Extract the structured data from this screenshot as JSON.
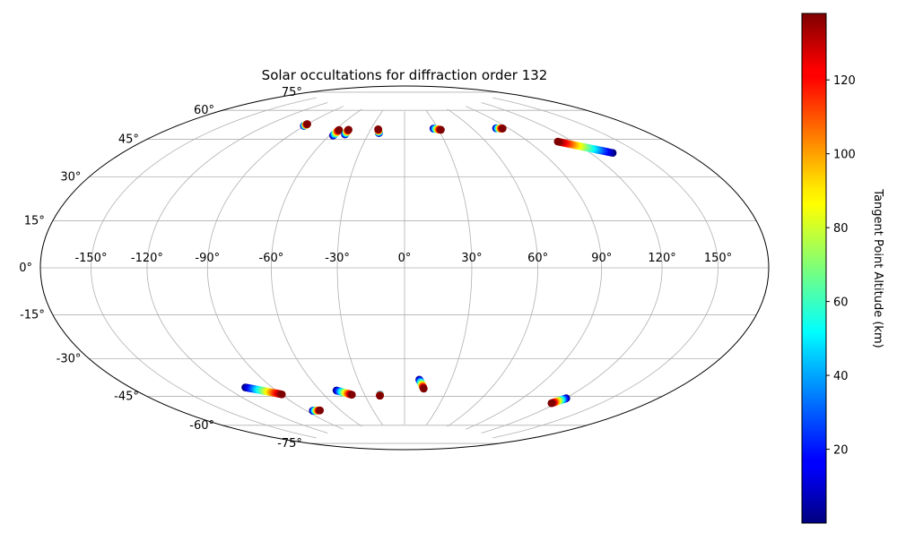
{
  "chart_data": {
    "type": "scatter",
    "projection": "hammer",
    "title": "Solar occultations for diffraction order 132",
    "xlabel": "",
    "ylabel": "",
    "grid": true,
    "x_ticks": [
      -150,
      -120,
      -90,
      -60,
      -30,
      0,
      30,
      60,
      90,
      120,
      150
    ],
    "y_ticks": [
      -75,
      -60,
      -45,
      -30,
      -15,
      0,
      15,
      30,
      45,
      60,
      75
    ],
    "tick_suffix": "°",
    "colorbar": {
      "label": "Tangent Point Altitude (km)",
      "min": 0,
      "max": 138,
      "ticks": [
        20,
        40,
        60,
        80,
        100,
        120
      ],
      "colormap": "jet"
    },
    "tracks": [
      {
        "lon_start": -90.5,
        "lat_start": 63.5,
        "alt_start": 0,
        "lon_end": -90.2,
        "lat_end": 64.5,
        "alt_end": 138
      },
      {
        "lon_start": -57.0,
        "lat_start": 60.5,
        "alt_start": 0,
        "lon_end": -56.8,
        "lat_end": 63.5,
        "alt_end": 138
      },
      {
        "lon_start": -48.5,
        "lat_start": 61.5,
        "alt_start": 0,
        "lon_end": -49.0,
        "lat_end": 64.0,
        "alt_end": 138
      },
      {
        "lon_start": -21.5,
        "lat_start": 63.0,
        "alt_start": 0,
        "lon_end": -23.5,
        "lat_end": 65.0,
        "alt_end": 138
      },
      {
        "lon_start": 26.0,
        "lat_start": 65.3,
        "alt_start": 0,
        "lon_end": 32.0,
        "lat_end": 64.5,
        "alt_end": 138
      },
      {
        "lon_start": 80.0,
        "lat_start": 63.0,
        "alt_start": 0,
        "lon_end": 85.0,
        "lat_end": 62.5,
        "alt_end": 138
      },
      {
        "lon_start": 134.0,
        "lat_start": 45.5,
        "alt_start": 0,
        "lon_end": 110.0,
        "lat_end": 53.5,
        "alt_end": 138
      },
      {
        "lon_start": -107.5,
        "lat_start": -50.5,
        "alt_start": 0,
        "lon_end": -89.5,
        "lat_end": -55.5,
        "alt_end": 138
      },
      {
        "lon_start": -84.5,
        "lat_start": -64.5,
        "alt_start": 0,
        "lon_end": -78.0,
        "lat_end": -64.8,
        "alt_end": 138
      },
      {
        "lon_start": -48.5,
        "lat_start": -56.0,
        "alt_start": 0,
        "lon_end": -39.5,
        "lat_end": -58.5,
        "alt_end": 138
      },
      {
        "lon_start": -18.5,
        "lat_start": -59.0,
        "alt_start": 0,
        "lon_end": -18.8,
        "lat_end": -59.5,
        "alt_end": 138
      },
      {
        "lon_start": 9.5,
        "lat_start": -51.5,
        "alt_start": 0,
        "lon_end": 13.5,
        "lat_end": -56.0,
        "alt_end": 138
      },
      {
        "lon_start": 120.5,
        "lat_start": -54.5,
        "alt_start": 0,
        "lon_end": 116.5,
        "lat_end": -57.5,
        "alt_end": 138
      }
    ]
  }
}
